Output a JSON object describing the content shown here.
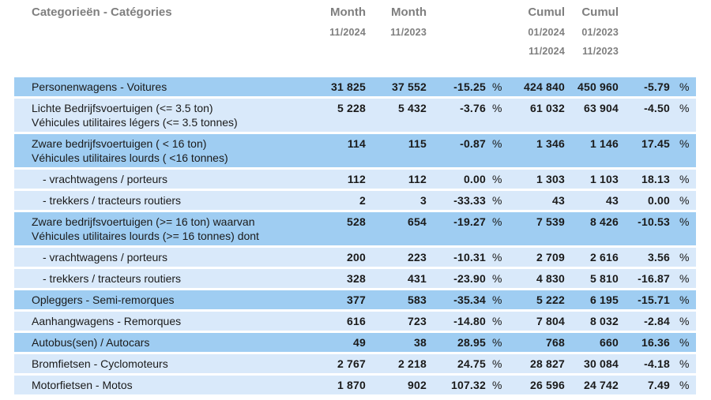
{
  "percent_sign": "%",
  "colors": {
    "row_dark": "#9fcdf2",
    "row_light": "#d9e9fa",
    "header_text": "#7f7f7f",
    "body_text": "#1a1a1a"
  },
  "header": {
    "category_label": "Categorieën - Catégories",
    "month_col_1": {
      "title": "Month",
      "period": "11/2024"
    },
    "month_col_2": {
      "title": "Month",
      "period": "11/2023"
    },
    "cumul_col_1": {
      "title": "Cumul",
      "period_from": "01/2024",
      "period_to": "11/2024"
    },
    "cumul_col_2": {
      "title": "Cumul",
      "period_from": "01/2023",
      "period_to": "11/2023"
    }
  },
  "rows": [
    {
      "label": "Personenwagens - Voitures",
      "label2": "",
      "indent": false,
      "shade": "dark",
      "month_2024": "31 825",
      "month_2023": "37 552",
      "month_pct": "-15.25",
      "cumul_2024": "424 840",
      "cumul_2023": "450 960",
      "cumul_pct": "-5.79"
    },
    {
      "label": "Lichte Bedrijfsvoertuigen (<= 3.5 ton)",
      "label2": "Véhicules utilitaires légers (<= 3.5 tonnes)",
      "indent": false,
      "shade": "light",
      "month_2024": "5 228",
      "month_2023": "5 432",
      "month_pct": "-3.76",
      "cumul_2024": "61 032",
      "cumul_2023": "63 904",
      "cumul_pct": "-4.50"
    },
    {
      "label": "Zware bedrijfsvoertuigen ( < 16 ton)",
      "label2": "Véhicules utilitaires lourds ( <16 tonnes)",
      "indent": false,
      "shade": "dark",
      "month_2024": "114",
      "month_2023": "115",
      "month_pct": "-0.87",
      "cumul_2024": "1 346",
      "cumul_2023": "1 146",
      "cumul_pct": "17.45"
    },
    {
      "label": "- vrachtwagens / porteurs",
      "label2": "",
      "indent": true,
      "shade": "light",
      "month_2024": "112",
      "month_2023": "112",
      "month_pct": "0.00",
      "cumul_2024": "1 303",
      "cumul_2023": "1 103",
      "cumul_pct": "18.13"
    },
    {
      "label": "- trekkers / tracteurs routiers",
      "label2": "",
      "indent": true,
      "shade": "light",
      "month_2024": "2",
      "month_2023": "3",
      "month_pct": "-33.33",
      "cumul_2024": "43",
      "cumul_2023": "43",
      "cumul_pct": "0.00"
    },
    {
      "label": "Zware bedrijfsvoertuigen (>= 16 ton) waarvan",
      "label2": "Véhicules utilitaires lourds (>= 16 tonnes) dont",
      "indent": false,
      "shade": "dark",
      "month_2024": "528",
      "month_2023": "654",
      "month_pct": "-19.27",
      "cumul_2024": "7 539",
      "cumul_2023": "8 426",
      "cumul_pct": "-10.53"
    },
    {
      "label": "- vrachtwagens / porteurs",
      "label2": "",
      "indent": true,
      "shade": "light",
      "month_2024": "200",
      "month_2023": "223",
      "month_pct": "-10.31",
      "cumul_2024": "2 709",
      "cumul_2023": "2 616",
      "cumul_pct": "3.56"
    },
    {
      "label": "- trekkers / tracteurs routiers",
      "label2": "",
      "indent": true,
      "shade": "light",
      "month_2024": "328",
      "month_2023": "431",
      "month_pct": "-23.90",
      "cumul_2024": "4 830",
      "cumul_2023": "5 810",
      "cumul_pct": "-16.87"
    },
    {
      "label": "Opleggers - Semi-remorques",
      "label2": "",
      "indent": false,
      "shade": "dark",
      "month_2024": "377",
      "month_2023": "583",
      "month_pct": "-35.34",
      "cumul_2024": "5 222",
      "cumul_2023": "6 195",
      "cumul_pct": "-15.71"
    },
    {
      "label": "Aanhangwagens - Remorques",
      "label2": "",
      "indent": false,
      "shade": "light",
      "month_2024": "616",
      "month_2023": "723",
      "month_pct": "-14.80",
      "cumul_2024": "7 804",
      "cumul_2023": "8 032",
      "cumul_pct": "-2.84"
    },
    {
      "label": "Autobus(sen) / Autocars",
      "label2": "",
      "indent": false,
      "shade": "dark",
      "month_2024": "49",
      "month_2023": "38",
      "month_pct": "28.95",
      "cumul_2024": "768",
      "cumul_2023": "660",
      "cumul_pct": "16.36"
    },
    {
      "label": "Bromfietsen - Cyclomoteurs",
      "label2": "",
      "indent": false,
      "shade": "light",
      "month_2024": "2 767",
      "month_2023": "2 218",
      "month_pct": "24.75",
      "cumul_2024": "28 827",
      "cumul_2023": "30 084",
      "cumul_pct": "-4.18"
    },
    {
      "label": "Motorfietsen - Motos",
      "label2": "",
      "indent": false,
      "shade": "light",
      "month_2024": "1 870",
      "month_2023": "902",
      "month_pct": "107.32",
      "cumul_2024": "26 596",
      "cumul_2023": "24 742",
      "cumul_pct": "7.49"
    }
  ]
}
